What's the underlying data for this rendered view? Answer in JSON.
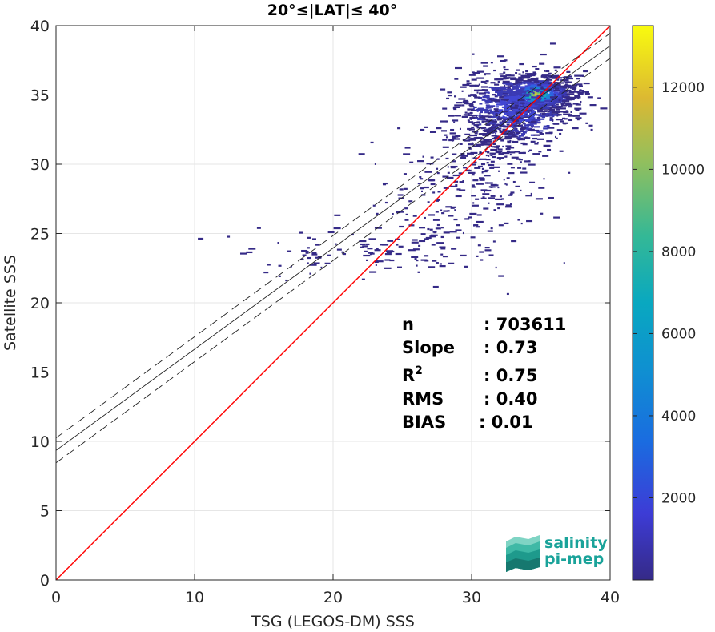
{
  "chart_data": {
    "type": "heatmap",
    "title": "20°≤|LAT|≤ 40°",
    "xlabel": "TSG (LEGOS-DM) SSS",
    "ylabel": "Satellite SSS",
    "xlim": [
      0,
      40
    ],
    "ylim": [
      0,
      40
    ],
    "xticks": [
      "0",
      "10",
      "20",
      "30",
      "40"
    ],
    "yticks": [
      "0",
      "5",
      "10",
      "15",
      "20",
      "25",
      "30",
      "35",
      "40"
    ],
    "grid": true,
    "colorbar": {
      "range": [
        0,
        13500
      ],
      "ticks": [
        "2000",
        "4000",
        "6000",
        "8000",
        "10000",
        "12000"
      ],
      "colormap": "parula"
    },
    "lines": {
      "identity": {
        "slope": 1,
        "intercept": 0,
        "color": "#ff0000"
      },
      "fit": {
        "slope": 0.73,
        "intercept": 9.35,
        "color": "#222222"
      },
      "fit_upper": {
        "slope": 0.73,
        "intercept": 10.25,
        "color": "#222222",
        "style": "dashed"
      },
      "fit_lower": {
        "slope": 0.73,
        "intercept": 8.45,
        "color": "#222222",
        "style": "dashed"
      }
    },
    "density_clusters": [
      {
        "x": 34.5,
        "y": 35.1,
        "sx": 1.4,
        "sy": 0.7,
        "n": 900
      },
      {
        "x": 33.0,
        "y": 34.0,
        "sx": 2.0,
        "sy": 1.4,
        "n": 650
      },
      {
        "x": 31.5,
        "y": 32.0,
        "sx": 1.6,
        "sy": 1.6,
        "n": 260
      },
      {
        "x": 29.0,
        "y": 27.5,
        "sx": 3.2,
        "sy": 2.2,
        "n": 200
      },
      {
        "x": 22.0,
        "y": 23.8,
        "sx": 4.0,
        "sy": 1.0,
        "n": 110
      }
    ],
    "stats": [
      {
        "label": "n",
        "value": ": 703611"
      },
      {
        "label": "Slope",
        "value": ": 0.73"
      },
      {
        "label": "R",
        "sup": "2",
        "value": ": 0.75"
      },
      {
        "label": "RMS",
        "value": ": 0.40"
      },
      {
        "label": "BIAS",
        "value": ": 0.01"
      }
    ]
  },
  "logo": {
    "line1": "salinity",
    "line2": "pi-mep"
  }
}
